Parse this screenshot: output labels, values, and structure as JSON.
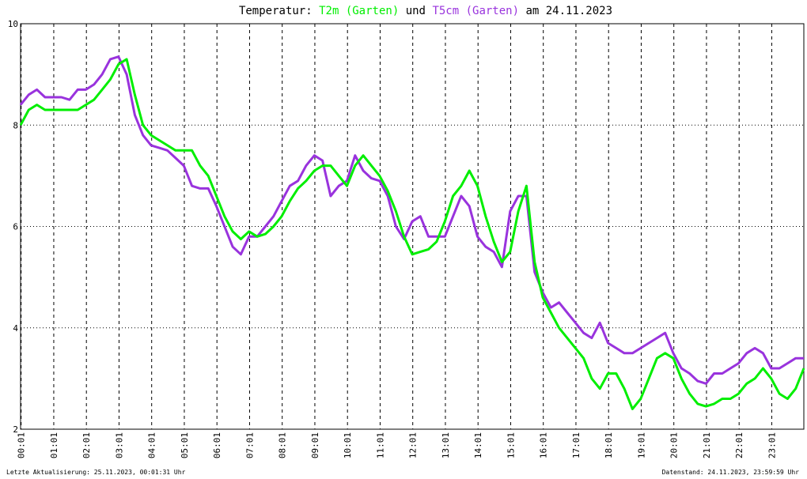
{
  "chart_data": {
    "type": "line",
    "title_parts": [
      "Temperatur:",
      "und",
      "am 24.11.2023"
    ],
    "footer_left": "Letzte Aktualisierung: 25.11.2023, 00:01:31 Uhr",
    "footer_right": "Datenstand: 24.11.2023, 23:59:59 Uhr",
    "x": [
      0,
      0.25,
      0.5,
      0.75,
      1,
      1.25,
      1.5,
      1.75,
      2,
      2.25,
      2.5,
      2.75,
      3,
      3.25,
      3.5,
      3.75,
      4,
      4.25,
      4.5,
      4.75,
      5,
      5.25,
      5.5,
      5.75,
      6,
      6.25,
      6.5,
      6.75,
      7,
      7.25,
      7.5,
      7.75,
      8,
      8.25,
      8.5,
      8.75,
      9,
      9.25,
      9.5,
      9.75,
      10,
      10.25,
      10.5,
      10.75,
      11,
      11.25,
      11.5,
      11.75,
      12,
      12.25,
      12.5,
      12.75,
      13,
      13.25,
      13.5,
      13.75,
      14,
      14.25,
      14.5,
      14.75,
      15,
      15.25,
      15.5,
      15.75,
      16,
      16.25,
      16.5,
      16.75,
      17,
      17.25,
      17.5,
      17.75,
      18,
      18.25,
      18.5,
      18.75,
      19,
      19.25,
      19.5,
      19.75,
      20,
      20.25,
      20.5,
      20.75,
      21,
      21.25,
      21.5,
      21.75,
      22,
      22.25,
      22.5,
      22.75,
      23,
      23.25,
      23.5,
      23.75,
      24
    ],
    "series": [
      {
        "name": "T2m (Garten)",
        "color": "#00ee00",
        "values": [
          8.0,
          8.3,
          8.4,
          8.3,
          8.3,
          8.3,
          8.3,
          8.3,
          8.4,
          8.5,
          8.7,
          8.9,
          9.2,
          9.3,
          8.6,
          8.0,
          7.8,
          7.7,
          7.6,
          7.5,
          7.5,
          7.5,
          7.2,
          7.0,
          6.6,
          6.2,
          5.9,
          5.75,
          5.9,
          5.8,
          5.85,
          6.0,
          6.2,
          6.5,
          6.75,
          6.9,
          7.1,
          7.2,
          7.2,
          7.0,
          6.8,
          7.2,
          7.4,
          7.2,
          7.0,
          6.7,
          6.3,
          5.8,
          5.45,
          5.5,
          5.55,
          5.7,
          6.1,
          6.6,
          6.8,
          7.1,
          6.8,
          6.2,
          5.7,
          5.3,
          5.5,
          6.3,
          6.8,
          5.3,
          4.6,
          4.3,
          4.0,
          3.8,
          3.6,
          3.4,
          3.0,
          2.8,
          3.1,
          3.1,
          2.8,
          2.4,
          2.6,
          3.0,
          3.4,
          3.5,
          3.4,
          3.0,
          2.7,
          2.5,
          2.45,
          2.5,
          2.6,
          2.6,
          2.7,
          2.9,
          3.0,
          3.2,
          3.0,
          2.7,
          2.6,
          2.8,
          3.2
        ]
      },
      {
        "name": "T5cm (Garten)",
        "color": "#9933dd",
        "values": [
          8.4,
          8.6,
          8.7,
          8.55,
          8.55,
          8.55,
          8.5,
          8.7,
          8.7,
          8.8,
          9.0,
          9.3,
          9.35,
          9.0,
          8.2,
          7.8,
          7.6,
          7.55,
          7.5,
          7.35,
          7.2,
          6.8,
          6.75,
          6.75,
          6.4,
          6.0,
          5.6,
          5.45,
          5.8,
          5.8,
          6.0,
          6.2,
          6.5,
          6.8,
          6.9,
          7.2,
          7.4,
          7.3,
          6.6,
          6.8,
          6.9,
          7.4,
          7.1,
          6.95,
          6.9,
          6.6,
          6.0,
          5.75,
          6.1,
          6.2,
          5.8,
          5.8,
          5.8,
          6.2,
          6.6,
          6.4,
          5.8,
          5.6,
          5.5,
          5.2,
          6.3,
          6.6,
          6.6,
          5.1,
          4.7,
          4.4,
          4.5,
          4.3,
          4.1,
          3.9,
          3.8,
          4.1,
          3.7,
          3.6,
          3.5,
          3.5,
          3.6,
          3.7,
          3.8,
          3.9,
          3.5,
          3.2,
          3.1,
          2.95,
          2.9,
          3.1,
          3.1,
          3.2,
          3.3,
          3.5,
          3.6,
          3.5,
          3.2,
          3.2,
          3.3,
          3.4,
          3.4
        ]
      }
    ],
    "xlim": [
      0,
      24
    ],
    "xticks": [
      {
        "value": 0.017,
        "label": "00:01"
      },
      {
        "value": 1.017,
        "label": "01:01"
      },
      {
        "value": 2.017,
        "label": "02:01"
      },
      {
        "value": 3.017,
        "label": "03:01"
      },
      {
        "value": 4.017,
        "label": "04:01"
      },
      {
        "value": 5.017,
        "label": "05:01"
      },
      {
        "value": 6.017,
        "label": "06:01"
      },
      {
        "value": 7.017,
        "label": "07:01"
      },
      {
        "value": 8.017,
        "label": "08:01"
      },
      {
        "value": 9.017,
        "label": "09:01"
      },
      {
        "value": 10.017,
        "label": "10:01"
      },
      {
        "value": 11.017,
        "label": "11:01"
      },
      {
        "value": 12.017,
        "label": "12:01"
      },
      {
        "value": 13.017,
        "label": "13:01"
      },
      {
        "value": 14.017,
        "label": "14:01"
      },
      {
        "value": 15.017,
        "label": "15:01"
      },
      {
        "value": 16.017,
        "label": "16:01"
      },
      {
        "value": 17.017,
        "label": "17:01"
      },
      {
        "value": 18.017,
        "label": "18:01"
      },
      {
        "value": 19.017,
        "label": "19:01"
      },
      {
        "value": 20.017,
        "label": "20:01"
      },
      {
        "value": 21.017,
        "label": "21:01"
      },
      {
        "value": 22.017,
        "label": "22:01"
      },
      {
        "value": 23.017,
        "label": "23:01"
      }
    ],
    "ylim": [
      2,
      10
    ],
    "yticks": [
      2,
      4,
      6,
      8,
      10
    ],
    "grid": true
  }
}
